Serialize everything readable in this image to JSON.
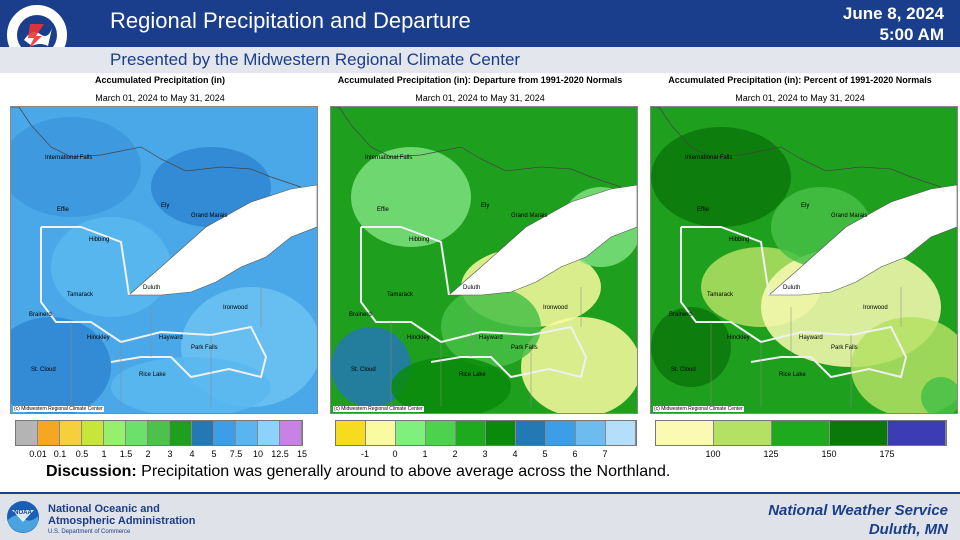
{
  "header": {
    "title": "Regional Precipitation and Departure",
    "date": "June 8, 2024",
    "time": "5:00 AM",
    "subtitle": "Presented by the Midwestern Regional Climate Center",
    "logo_text": "NATIONAL WEATHER SERVICE"
  },
  "panels": [
    {
      "title": "Accumulated Precipitation (in)",
      "dates": "March 01, 2024 to May 31, 2024",
      "copyright": "(c) Midwestern Regional Climate Center",
      "legend_colors": [
        "#b4b4b4",
        "#f5a623",
        "#f5d03c",
        "#c6e63a",
        "#96f06c",
        "#6be06a",
        "#4cc24c",
        "#1ea01e",
        "#2478b4",
        "#3c9ee6",
        "#5ab4f0",
        "#8cd2fa",
        "#c882e6"
      ],
      "legend_labels": [
        "0.01",
        "0.1",
        "0.5",
        "1",
        "1.5",
        "2",
        "3",
        "4",
        "5",
        "7.5",
        "10",
        "12.5",
        "15"
      ]
    },
    {
      "title": "Accumulated Precipitation (in): Departure from 1991-2020 Normals",
      "dates": "March 01, 2024 to May 31, 2024",
      "copyright": "(c) Midwestern Regional Climate Center",
      "legend_colors": [
        "#f5dc1e",
        "#fafaa0",
        "#7ef07e",
        "#4cd24c",
        "#1eaa1e",
        "#0a8a0a",
        "#2478b4",
        "#3c9ee6",
        "#6cbcf0",
        "#b4defa"
      ],
      "legend_labels": [
        "-1",
        "0",
        "1",
        "2",
        "3",
        "4",
        "5",
        "6",
        "7"
      ]
    },
    {
      "title": "Accumulated Precipitation (in): Percent of 1991-2020 Normals",
      "dates": "March 01, 2024 to May 31, 2024",
      "copyright": "(c) Midwestern Regional Climate Center",
      "legend_colors": [
        "#fafab4",
        "#b4e164",
        "#1eaa1e",
        "#0a780a",
        "#3c3cb4"
      ],
      "legend_labels": [
        "100",
        "125",
        "150",
        "175"
      ]
    }
  ],
  "cities": [
    "International Falls",
    "Effie",
    "Ely",
    "Grand Marais",
    "Hibbing",
    "Duluth",
    "Tamarack",
    "Ironwood",
    "Brainerd",
    "Hinckley",
    "Hayward",
    "Park Falls",
    "St. Cloud",
    "Rice Lake"
  ],
  "discussion": {
    "label": "Discussion:",
    "text": "Precipitation was generally around to above average across the Northland."
  },
  "footer": {
    "noaa_line1": "National Oceanic and",
    "noaa_line2": "Atmospheric Administration",
    "noaa_sub": "U.S. Department of Commerce",
    "noaa_logo_text": "NOAA",
    "nws_line1": "National  Weather  Service",
    "nws_line2": "Duluth,  MN"
  }
}
